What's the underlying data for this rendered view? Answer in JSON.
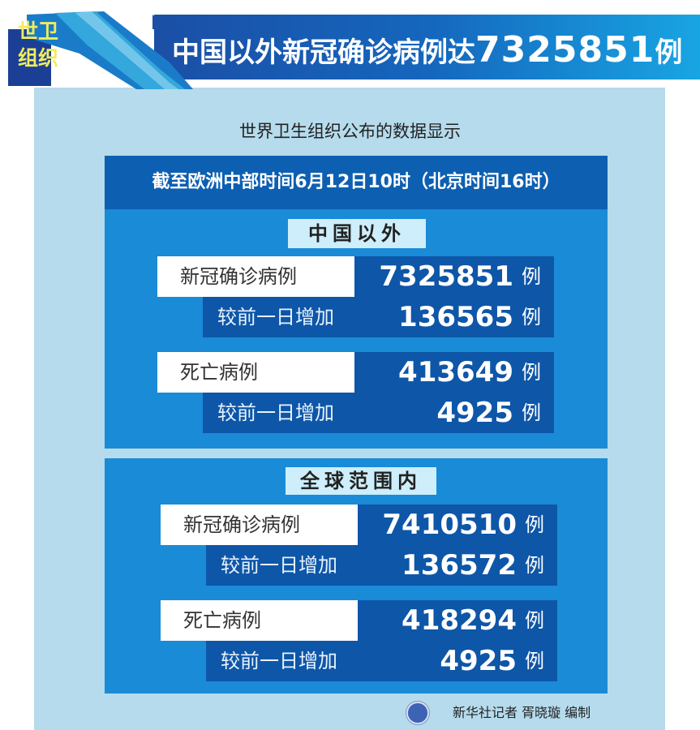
{
  "header": {
    "tag_line1": "世卫",
    "tag_line2": "组织",
    "title_prefix": "中国以外新冠确诊病例达",
    "title_number": "7325851",
    "title_suffix": "例"
  },
  "subtitle": "世界卫生组织公布的数据显示",
  "date_bar": "截至欧洲中部时间6月12日10时（北京时间16时）",
  "sections": [
    {
      "label": "中国以外",
      "rows": [
        {
          "label": "新冠确诊病例",
          "value": "7325851",
          "unit": "例"
        },
        {
          "label": "较前一日增加",
          "value": "136565",
          "unit": "例"
        },
        {
          "label": "死亡病例",
          "value": "413649",
          "unit": "例"
        },
        {
          "label": "较前一日增加",
          "value": "4925",
          "unit": "例"
        }
      ]
    },
    {
      "label": "全球范围内",
      "rows": [
        {
          "label": "新冠确诊病例",
          "value": "7410510",
          "unit": "例"
        },
        {
          "label": "较前一日增加",
          "value": "136572",
          "unit": "例"
        },
        {
          "label": "死亡病例",
          "value": "418294",
          "unit": "例"
        },
        {
          "label": "较前一日增加",
          "value": "4925",
          "unit": "例"
        }
      ]
    }
  ],
  "footer": {
    "credit": "新华社记者  胥晓璇  编制",
    "logo": "xinhua-logo"
  },
  "colors": {
    "header_start": "#1b4fa6",
    "header_end": "#18a5e3",
    "panel": "#b5dbec",
    "section": "#1a8bd6",
    "dark": "#0e56a8",
    "tag": "#f1ec5c"
  }
}
